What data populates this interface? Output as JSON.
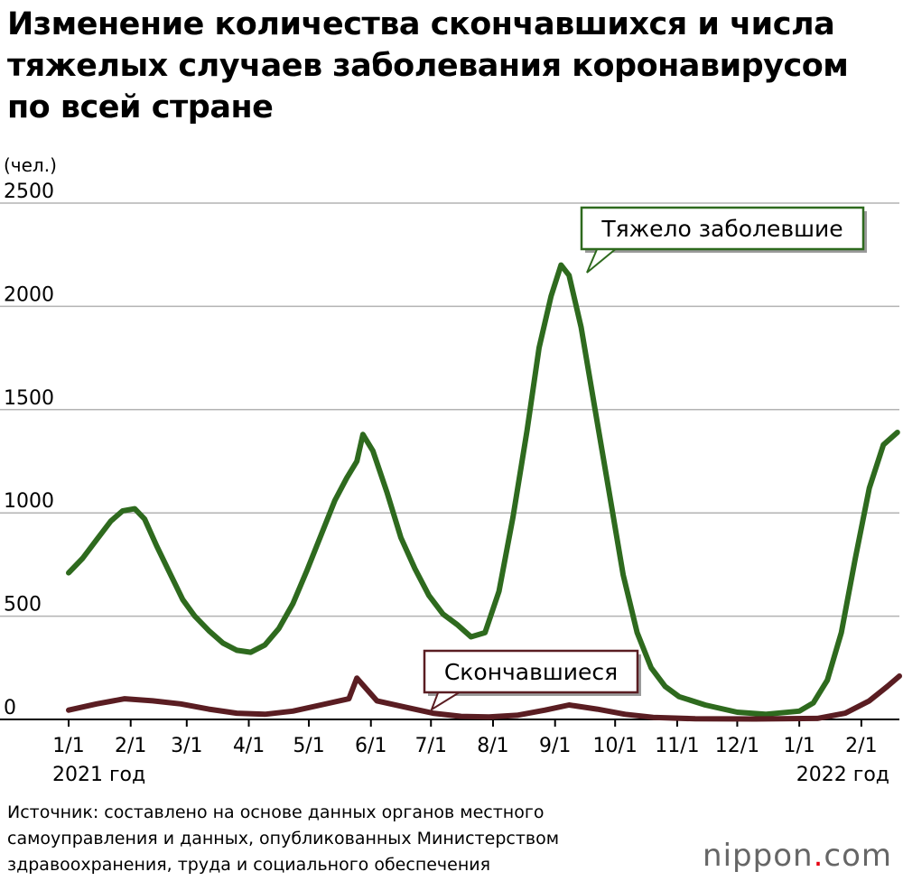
{
  "title_lines": [
    "Изменение количества скончавшихся и числа",
    "тяжелых случаев заболевания коронавирусом",
    "по всей стране"
  ],
  "source_lines": [
    "Источник: составлено на основе данных органов местного",
    "самоуправления и данных, опубликованных Министерством",
    "здравоохранения, труда и социального обеспечения"
  ],
  "logo": {
    "name": "nippon",
    "dot": ".",
    "suffix": "com"
  },
  "colors": {
    "severe": "#2e6a1e",
    "deaths": "#5a1d22",
    "grid": "#b3b3b3",
    "logo_dot": "#e60012"
  },
  "chart_data": {
    "type": "line",
    "ylabel": "(чел.)",
    "ylim": [
      0,
      2500
    ],
    "yticks": [
      0,
      500,
      1000,
      1500,
      2000,
      2500
    ],
    "x_ticks": [
      "1/1",
      "2/1",
      "3/1",
      "4/1",
      "5/1",
      "6/1",
      "7/1",
      "8/1",
      "9/1",
      "10/1",
      "11/1",
      "12/1",
      "1/1",
      "2/1"
    ],
    "x_range": [
      "2021-01-01",
      "2022-02-20"
    ],
    "year_labels": [
      "2021 год",
      "2022 год"
    ],
    "grid": true,
    "series": [
      {
        "name": "Тяжело заболевшие",
        "color": "#2e6a1e",
        "points": [
          [
            "2021-01-01",
            710
          ],
          [
            "2021-01-08",
            780
          ],
          [
            "2021-01-15",
            870
          ],
          [
            "2021-01-22",
            960
          ],
          [
            "2021-01-28",
            1010
          ],
          [
            "2021-02-03",
            1020
          ],
          [
            "2021-02-08",
            970
          ],
          [
            "2021-02-14",
            840
          ],
          [
            "2021-02-20",
            720
          ],
          [
            "2021-02-27",
            580
          ],
          [
            "2021-03-05",
            500
          ],
          [
            "2021-03-12",
            430
          ],
          [
            "2021-03-19",
            370
          ],
          [
            "2021-03-26",
            335
          ],
          [
            "2021-04-02",
            325
          ],
          [
            "2021-04-09",
            360
          ],
          [
            "2021-04-16",
            440
          ],
          [
            "2021-04-23",
            560
          ],
          [
            "2021-04-30",
            720
          ],
          [
            "2021-05-07",
            890
          ],
          [
            "2021-05-14",
            1060
          ],
          [
            "2021-05-20",
            1170
          ],
          [
            "2021-05-25",
            1250
          ],
          [
            "2021-05-28",
            1380
          ],
          [
            "2021-06-02",
            1300
          ],
          [
            "2021-06-09",
            1100
          ],
          [
            "2021-06-16",
            880
          ],
          [
            "2021-06-23",
            730
          ],
          [
            "2021-06-30",
            600
          ],
          [
            "2021-07-07",
            510
          ],
          [
            "2021-07-14",
            460
          ],
          [
            "2021-07-21",
            400
          ],
          [
            "2021-07-28",
            420
          ],
          [
            "2021-08-04",
            620
          ],
          [
            "2021-08-11",
            980
          ],
          [
            "2021-08-18",
            1400
          ],
          [
            "2021-08-24",
            1800
          ],
          [
            "2021-08-30",
            2050
          ],
          [
            "2021-09-04",
            2200
          ],
          [
            "2021-09-08",
            2150
          ],
          [
            "2021-09-14",
            1900
          ],
          [
            "2021-09-21",
            1500
          ],
          [
            "2021-09-28",
            1100
          ],
          [
            "2021-10-05",
            700
          ],
          [
            "2021-10-12",
            420
          ],
          [
            "2021-10-19",
            250
          ],
          [
            "2021-10-26",
            160
          ],
          [
            "2021-11-02",
            110
          ],
          [
            "2021-11-15",
            70
          ],
          [
            "2021-12-01",
            35
          ],
          [
            "2021-12-15",
            25
          ],
          [
            "2022-01-01",
            40
          ],
          [
            "2022-01-08",
            80
          ],
          [
            "2022-01-15",
            190
          ],
          [
            "2022-01-22",
            420
          ],
          [
            "2022-01-29",
            780
          ],
          [
            "2022-02-05",
            1120
          ],
          [
            "2022-02-12",
            1330
          ],
          [
            "2022-02-19",
            1390
          ]
        ]
      },
      {
        "name": "Скончавшиеся",
        "color": "#5a1d22",
        "points": [
          [
            "2021-01-01",
            45
          ],
          [
            "2021-01-15",
            75
          ],
          [
            "2021-01-29",
            100
          ],
          [
            "2021-02-12",
            90
          ],
          [
            "2021-02-26",
            75
          ],
          [
            "2021-03-12",
            50
          ],
          [
            "2021-03-26",
            30
          ],
          [
            "2021-04-09",
            25
          ],
          [
            "2021-04-23",
            40
          ],
          [
            "2021-05-07",
            70
          ],
          [
            "2021-05-21",
            100
          ],
          [
            "2021-05-25",
            200
          ],
          [
            "2021-06-04",
            90
          ],
          [
            "2021-06-18",
            60
          ],
          [
            "2021-07-02",
            30
          ],
          [
            "2021-07-16",
            15
          ],
          [
            "2021-07-30",
            12
          ],
          [
            "2021-08-13",
            20
          ],
          [
            "2021-08-27",
            45
          ],
          [
            "2021-09-08",
            70
          ],
          [
            "2021-09-22",
            50
          ],
          [
            "2021-10-06",
            25
          ],
          [
            "2021-10-20",
            10
          ],
          [
            "2021-11-10",
            3
          ],
          [
            "2021-12-10",
            2
          ],
          [
            "2022-01-10",
            5
          ],
          [
            "2022-01-24",
            30
          ],
          [
            "2022-02-05",
            90
          ],
          [
            "2022-02-14",
            160
          ],
          [
            "2022-02-20",
            210
          ]
        ]
      }
    ],
    "annotations": [
      {
        "text": "Тяжело заболевшие",
        "series": 0
      },
      {
        "text": "Скончавшиеся",
        "series": 1
      }
    ]
  }
}
